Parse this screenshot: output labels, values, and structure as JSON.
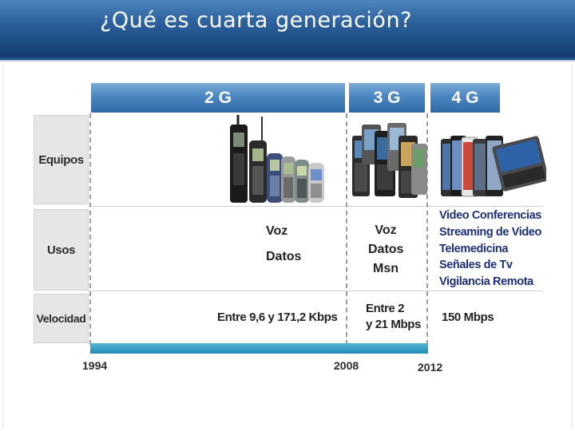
{
  "title": "¿Qué es cuarta generación?",
  "generations": [
    {
      "label": "2 G",
      "uses": [
        "Voz",
        "Datos"
      ],
      "speed": [
        "Entre 9,6 y 171,2 Kbps"
      ]
    },
    {
      "label": "3 G",
      "uses": [
        "Voz",
        "Datos",
        "Msn"
      ],
      "speed": [
        "Entre 2",
        "y 21 Mbps"
      ]
    },
    {
      "label": "4 G",
      "uses": [
        "Video Conferencias",
        "Streaming de Video",
        "Telemedicina",
        "Señales de Tv",
        "Vigilancia Remota"
      ],
      "speed": [
        "150 Mbps"
      ]
    }
  ],
  "row_labels": {
    "equipos": "Equipos",
    "usos": "Usos",
    "velocidad": "Velocidad"
  },
  "years": [
    "1994",
    "2008",
    "2012"
  ],
  "colors": {
    "header": "#1c4a82",
    "gen_bar": "#4f8ac4",
    "timeline": "#2a95bf",
    "uses_4g_text": "#1d2f7a"
  }
}
